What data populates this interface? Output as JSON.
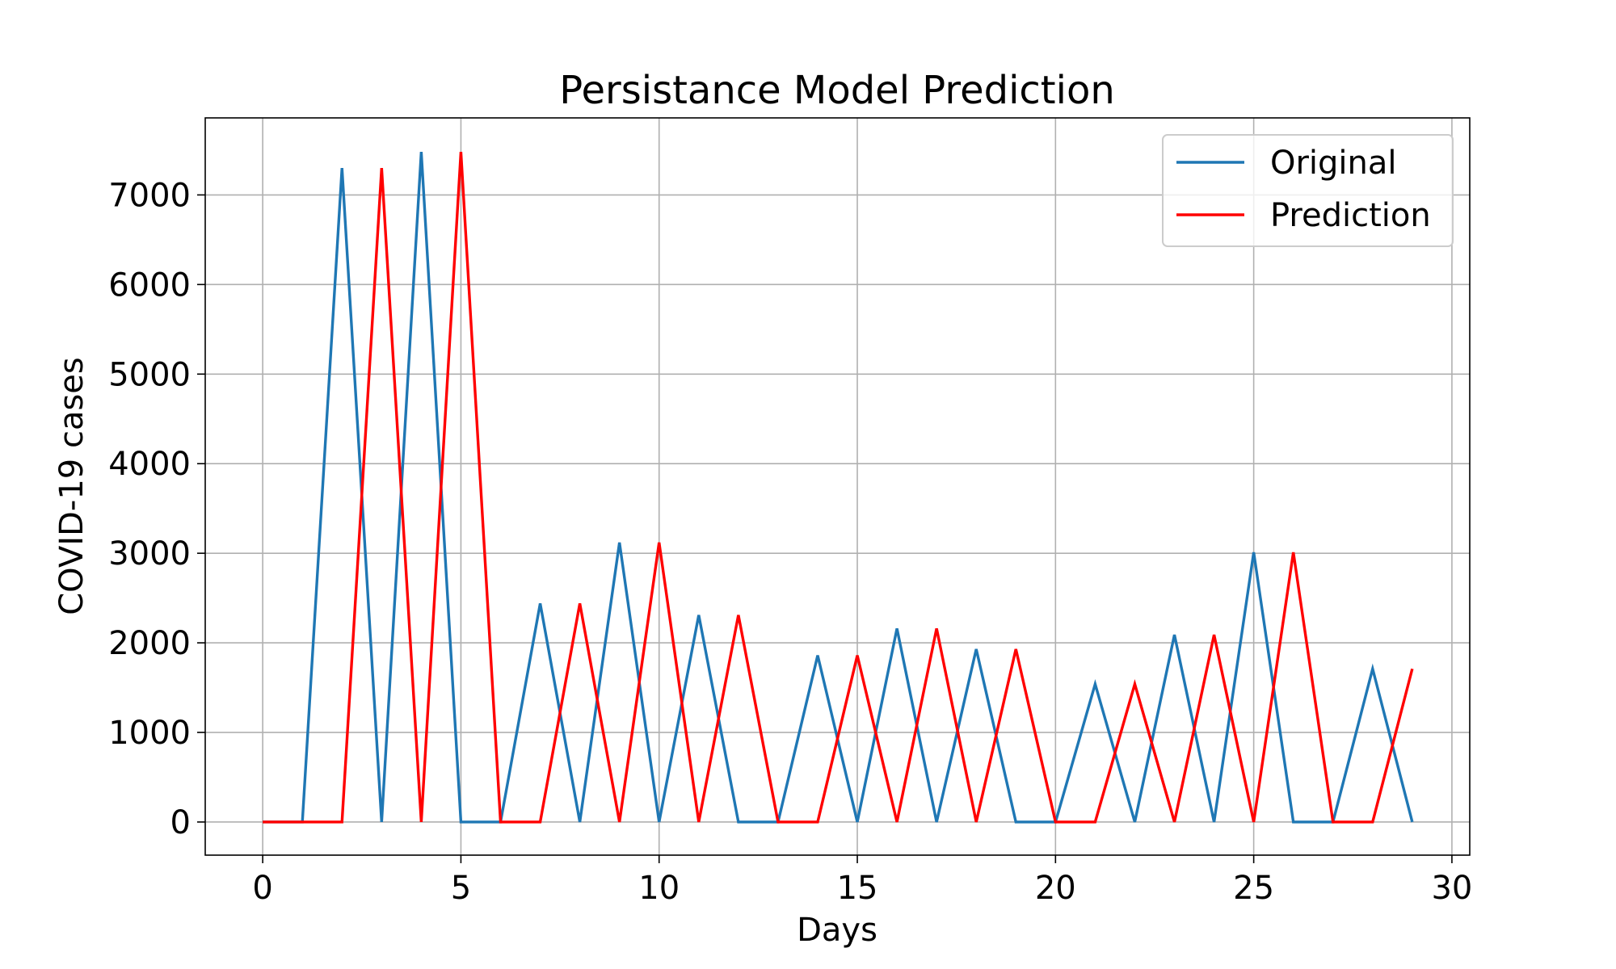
{
  "chart_data": {
    "type": "line",
    "title": "Persistance Model Prediction",
    "xlabel": "Days",
    "ylabel": "COVID-19 cases",
    "xlim": [
      -1.45,
      30.45
    ],
    "ylim": [
      -370,
      7860
    ],
    "xticks": [
      0,
      5,
      10,
      15,
      20,
      25,
      30
    ],
    "yticks": [
      0,
      1000,
      2000,
      3000,
      4000,
      5000,
      6000,
      7000
    ],
    "grid": true,
    "legend_position": "top-right",
    "x": [
      0,
      1,
      2,
      3,
      4,
      5,
      6,
      7,
      8,
      9,
      10,
      11,
      12,
      13,
      14,
      15,
      16,
      17,
      18,
      19,
      20,
      21,
      22,
      23,
      24,
      25,
      26,
      27,
      28,
      29
    ],
    "series": [
      {
        "name": "Original",
        "color": "#1f77b4",
        "values": [
          0,
          0,
          7300,
          0,
          7480,
          0,
          0,
          2440,
          0,
          3120,
          0,
          2310,
          0,
          0,
          1860,
          0,
          2160,
          0,
          1930,
          0,
          0,
          1540,
          0,
          2090,
          0,
          3010,
          0,
          0,
          1710,
          0
        ]
      },
      {
        "name": "Prediction",
        "color": "#ff0000",
        "values": [
          0,
          0,
          0,
          7300,
          0,
          7480,
          0,
          0,
          2440,
          0,
          3120,
          0,
          2310,
          0,
          0,
          1860,
          0,
          2160,
          0,
          1930,
          0,
          0,
          1540,
          0,
          2090,
          0,
          3010,
          0,
          0,
          1710
        ]
      }
    ]
  }
}
